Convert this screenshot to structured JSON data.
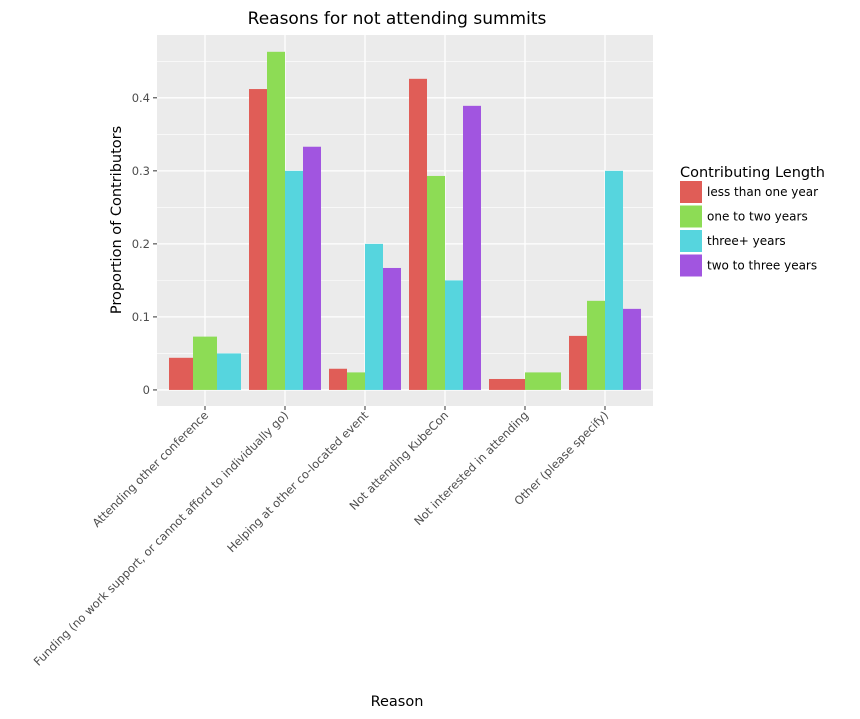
{
  "chart_data": {
    "type": "bar",
    "title": "Reasons for not attending summits",
    "xlabel": "Reason",
    "ylabel": "Proportion of Contributors",
    "categories": [
      "Attending other conference",
      "Funding (no work support, or cannot afford to individually go)",
      "Helping at other co-located event",
      "Not attending KubeCon",
      "Not interested in attending",
      "Other (please specify)"
    ],
    "series": [
      {
        "name": "less than one year",
        "color": "#e05d57",
        "values": [
          0.044,
          0.412,
          0.029,
          0.426,
          0.015,
          0.074
        ]
      },
      {
        "name": "one to two years",
        "color": "#8ddc55",
        "values": [
          0.073,
          0.463,
          0.024,
          0.293,
          0.024,
          0.122
        ]
      },
      {
        "name": "three+ years",
        "color": "#56d5de",
        "values": [
          0.05,
          0.3,
          0.2,
          0.15,
          null,
          0.3
        ]
      },
      {
        "name": "two to three years",
        "color": "#a155e0",
        "values": [
          null,
          0.333,
          0.167,
          0.389,
          null,
          0.111
        ]
      }
    ],
    "ylim": [
      -0.022,
      0.486
    ],
    "yticks": [
      0,
      0.1,
      0.2,
      0.3,
      0.4
    ],
    "ytick_labels": [
      "0",
      "0.1",
      "0.2",
      "0.3",
      "0.4"
    ],
    "grid": true,
    "legend": {
      "title": "Contributing Length",
      "position": "right"
    }
  }
}
